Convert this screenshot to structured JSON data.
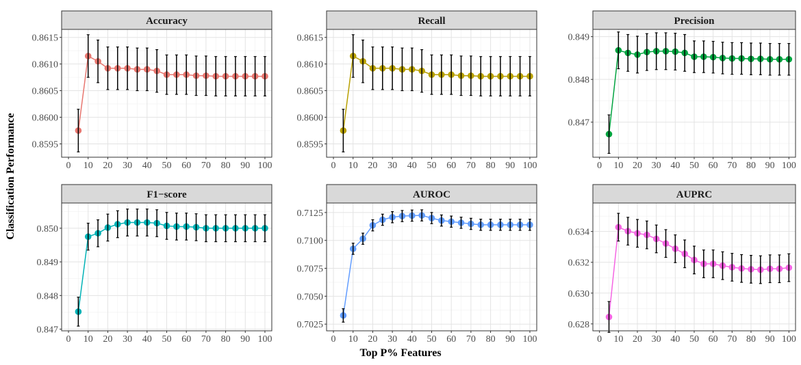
{
  "figure": {
    "xlabel": "Top P% Features",
    "ylabel": "Classification Performance"
  },
  "chart_data": [
    {
      "type": "line",
      "title": "Accuracy",
      "color": "#E8766F",
      "x": [
        5,
        10,
        15,
        20,
        25,
        30,
        35,
        40,
        45,
        50,
        55,
        60,
        65,
        70,
        75,
        80,
        85,
        90,
        95,
        100
      ],
      "y": [
        0.85975,
        0.86115,
        0.86105,
        0.86092,
        0.86092,
        0.86092,
        0.8609,
        0.8609,
        0.86087,
        0.8608,
        0.8608,
        0.8608,
        0.86078,
        0.86078,
        0.86077,
        0.86077,
        0.86077,
        0.86077,
        0.86077,
        0.86077
      ],
      "err": [
        0.0004,
        0.0004,
        0.0004,
        0.0004,
        0.0004,
        0.0004,
        0.0004,
        0.0004,
        0.0004,
        0.00037,
        0.00037,
        0.00037,
        0.00037,
        0.00037,
        0.00037,
        0.00037,
        0.00037,
        0.00037,
        0.00037,
        0.00037
      ],
      "ylim": [
        0.85925,
        0.86165
      ],
      "yticks": [
        "0.8595",
        "0.8600",
        "0.8605",
        "0.8610",
        "0.8615"
      ],
      "ytick_values": [
        0.8595,
        0.86,
        0.8605,
        0.861,
        0.8615
      ],
      "xticks": [
        "0",
        "10",
        "20",
        "30",
        "40",
        "50",
        "60",
        "70",
        "80",
        "90",
        "100"
      ]
    },
    {
      "type": "line",
      "title": "Recall",
      "color": "#B79F00",
      "x": [
        5,
        10,
        15,
        20,
        25,
        30,
        35,
        40,
        45,
        50,
        55,
        60,
        65,
        70,
        75,
        80,
        85,
        90,
        95,
        100
      ],
      "y": [
        0.85975,
        0.86115,
        0.86105,
        0.86092,
        0.86092,
        0.86092,
        0.8609,
        0.8609,
        0.86087,
        0.8608,
        0.8608,
        0.8608,
        0.86078,
        0.86078,
        0.86077,
        0.86077,
        0.86077,
        0.86077,
        0.86077,
        0.86077
      ],
      "err": [
        0.0004,
        0.0004,
        0.0004,
        0.0004,
        0.0004,
        0.0004,
        0.0004,
        0.0004,
        0.0004,
        0.00037,
        0.00037,
        0.00037,
        0.00037,
        0.00037,
        0.00037,
        0.00037,
        0.00037,
        0.00037,
        0.00037,
        0.00037
      ],
      "ylim": [
        0.85925,
        0.86165
      ],
      "yticks": [
        "0.8595",
        "0.8600",
        "0.8605",
        "0.8610",
        "0.8615"
      ],
      "ytick_values": [
        0.8595,
        0.86,
        0.8605,
        0.861,
        0.8615
      ],
      "xticks": [
        "0",
        "10",
        "20",
        "30",
        "40",
        "50",
        "60",
        "70",
        "80",
        "90",
        "100"
      ]
    },
    {
      "type": "line",
      "title": "Precision",
      "color": "#00A33F",
      "x": [
        5,
        10,
        15,
        20,
        25,
        30,
        35,
        40,
        45,
        50,
        55,
        60,
        65,
        70,
        75,
        80,
        85,
        90,
        95,
        100
      ],
      "y": [
        0.84672,
        0.84868,
        0.84862,
        0.84858,
        0.84864,
        0.84866,
        0.84866,
        0.84865,
        0.84862,
        0.84853,
        0.84853,
        0.84852,
        0.8485,
        0.84849,
        0.84849,
        0.84848,
        0.84848,
        0.84847,
        0.84847,
        0.84847
      ],
      "err": [
        0.00045,
        0.00043,
        0.00043,
        0.00043,
        0.00043,
        0.00043,
        0.00043,
        0.00043,
        0.00043,
        0.00037,
        0.00037,
        0.00037,
        0.00037,
        0.00037,
        0.00037,
        0.00037,
        0.00037,
        0.00037,
        0.00037,
        0.00037
      ],
      "ylim": [
        0.84618,
        0.84917
      ],
      "yticks": [
        "0.847",
        "0.848",
        "0.849"
      ],
      "ytick_values": [
        0.847,
        0.848,
        0.849
      ],
      "xticks": [
        "0",
        "10",
        "20",
        "30",
        "40",
        "50",
        "60",
        "70",
        "80",
        "90",
        "100"
      ]
    },
    {
      "type": "line",
      "title": "F1−score",
      "color": "#00B2B6",
      "x": [
        5,
        10,
        15,
        20,
        25,
        30,
        35,
        40,
        45,
        50,
        55,
        60,
        65,
        70,
        75,
        80,
        85,
        90,
        95,
        100
      ],
      "y": [
        0.84752,
        0.84975,
        0.84985,
        0.85002,
        0.85012,
        0.85017,
        0.85017,
        0.85017,
        0.85015,
        0.85007,
        0.85005,
        0.85005,
        0.85003,
        0.85,
        0.85,
        0.85,
        0.85,
        0.85,
        0.85,
        0.85
      ],
      "err": [
        0.00043,
        0.0004,
        0.0004,
        0.0004,
        0.0004,
        0.0004,
        0.0004,
        0.0004,
        0.0004,
        0.0004,
        0.0004,
        0.0004,
        0.0004,
        0.0004,
        0.0004,
        0.0004,
        0.0004,
        0.0004,
        0.0004,
        0.0004
      ],
      "ylim": [
        0.84695,
        0.85075
      ],
      "yticks": [
        "0.847",
        "0.848",
        "0.849",
        "0.850"
      ],
      "ytick_values": [
        0.847,
        0.848,
        0.849,
        0.85
      ],
      "xticks": [
        "0",
        "10",
        "20",
        "30",
        "40",
        "50",
        "60",
        "70",
        "80",
        "90",
        "100"
      ]
    },
    {
      "type": "line",
      "title": "AUROC",
      "color": "#619CFF",
      "x": [
        5,
        10,
        15,
        20,
        25,
        30,
        35,
        40,
        45,
        50,
        55,
        60,
        65,
        70,
        75,
        80,
        85,
        90,
        95,
        100
      ],
      "y": [
        0.70328,
        0.70925,
        0.71015,
        0.71135,
        0.71185,
        0.71208,
        0.71218,
        0.71222,
        0.71224,
        0.712,
        0.71178,
        0.71168,
        0.71158,
        0.71148,
        0.7114,
        0.7114,
        0.7114,
        0.7114,
        0.7114,
        0.7114
      ],
      "err": [
        0.0006,
        0.0005,
        0.0005,
        0.0005,
        0.0005,
        0.0005,
        0.0005,
        0.0005,
        0.0005,
        0.0005,
        0.0005,
        0.0005,
        0.0005,
        0.0005,
        0.0005,
        0.0005,
        0.0005,
        0.0005,
        0.0005,
        0.0005
      ],
      "ylim": [
        0.7019,
        0.71335
      ],
      "yticks": [
        "0.7025",
        "0.7050",
        "0.7075",
        "0.7100",
        "0.7125"
      ],
      "ytick_values": [
        0.7025,
        0.705,
        0.7075,
        0.71,
        0.7125
      ],
      "xticks": [
        "0",
        "10",
        "20",
        "30",
        "40",
        "50",
        "60",
        "70",
        "80",
        "90",
        "100"
      ]
    },
    {
      "type": "line",
      "title": "AUPRC",
      "color": "#F564E3",
      "x": [
        5,
        10,
        15,
        20,
        25,
        30,
        35,
        40,
        45,
        50,
        55,
        60,
        65,
        70,
        75,
        80,
        85,
        90,
        95,
        100
      ],
      "y": [
        0.62845,
        0.63428,
        0.63402,
        0.63388,
        0.63378,
        0.63352,
        0.63322,
        0.63288,
        0.63255,
        0.63215,
        0.6319,
        0.6319,
        0.63178,
        0.63168,
        0.6316,
        0.63155,
        0.63152,
        0.63158,
        0.63158,
        0.63165
      ],
      "err": [
        0.001,
        0.0009,
        0.0009,
        0.0009,
        0.0009,
        0.0009,
        0.0009,
        0.0009,
        0.0009,
        0.0009,
        0.0009,
        0.0009,
        0.0009,
        0.0009,
        0.0009,
        0.0009,
        0.0009,
        0.0009,
        0.0009,
        0.0009
      ],
      "ylim": [
        0.62755,
        0.63585
      ],
      "yticks": [
        "0.628",
        "0.630",
        "0.632",
        "0.634"
      ],
      "ytick_values": [
        0.628,
        0.63,
        0.632,
        0.634
      ],
      "xticks": [
        "0",
        "10",
        "20",
        "30",
        "40",
        "50",
        "60",
        "70",
        "80",
        "90",
        "100"
      ]
    }
  ]
}
